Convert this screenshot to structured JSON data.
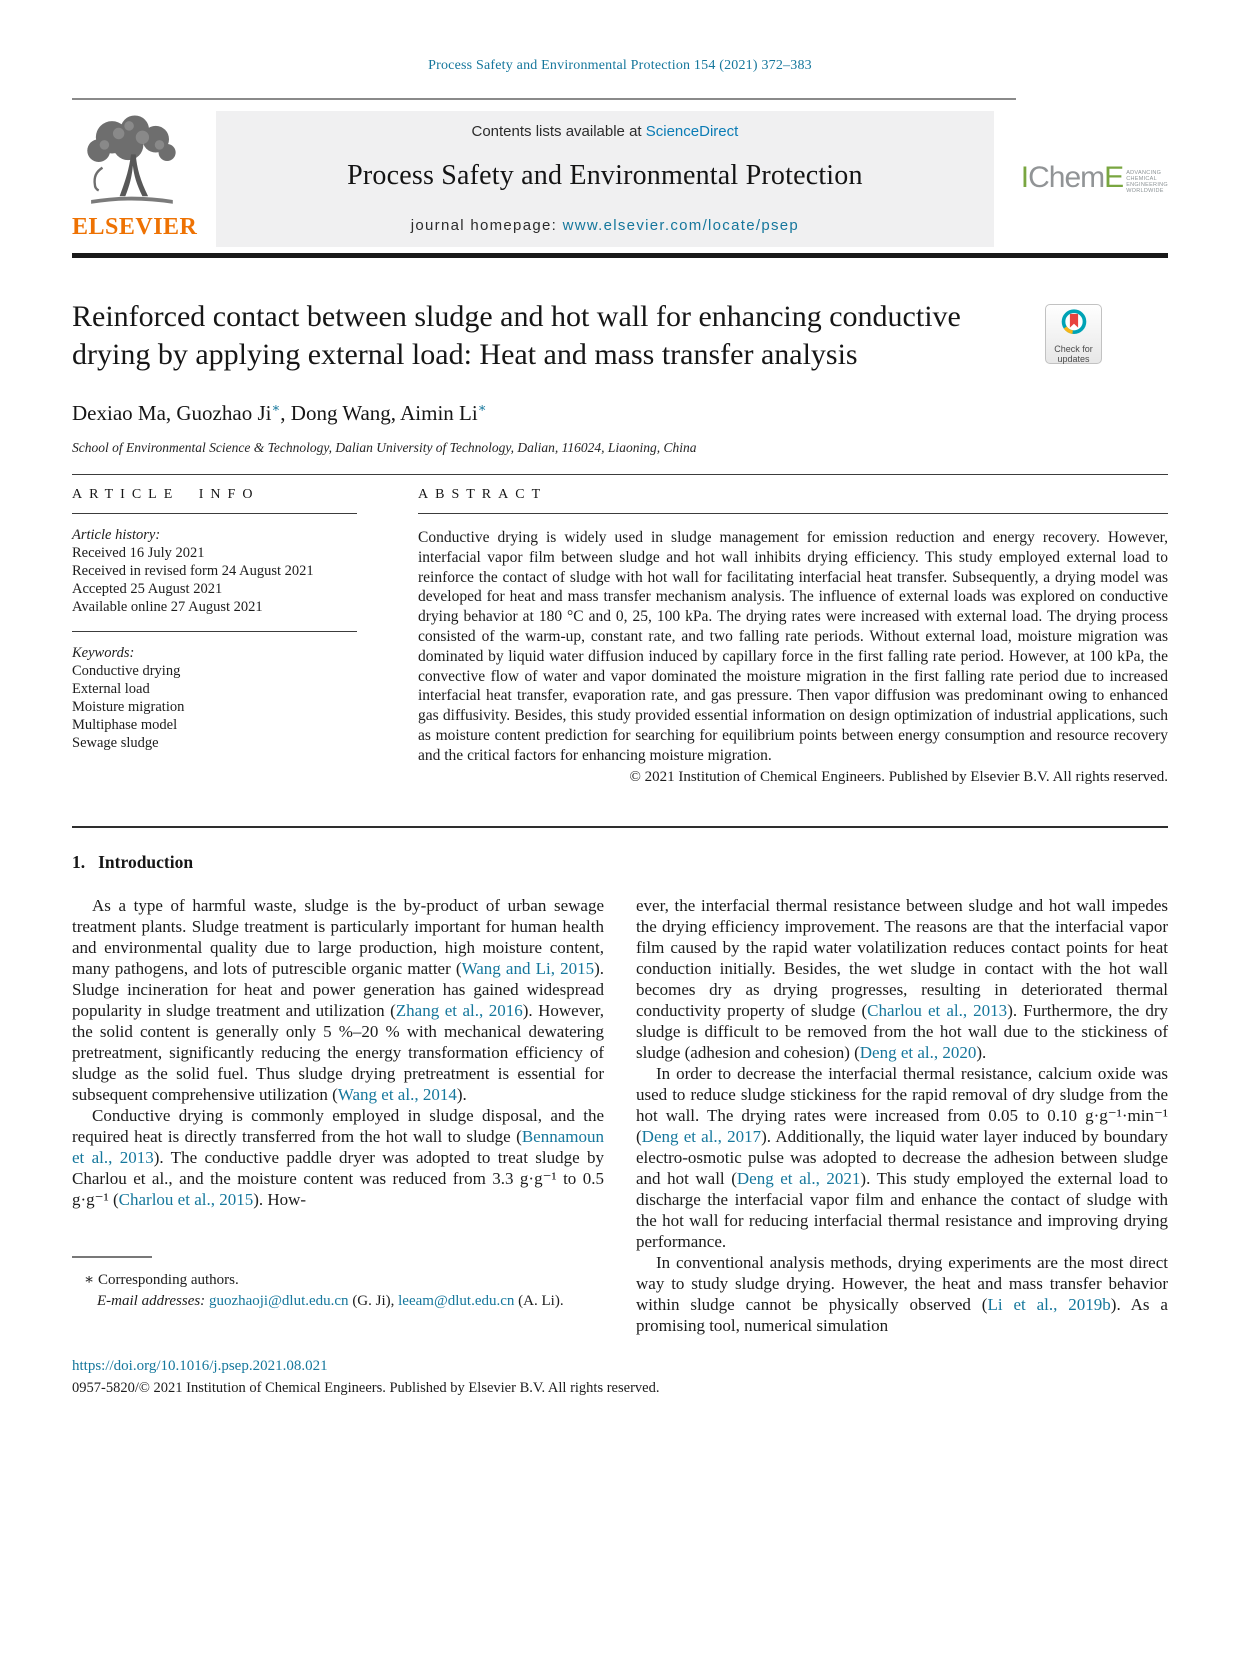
{
  "colors": {
    "link_teal": "#15779c",
    "sciencedirect_blue": "#0b7cb5",
    "elsevier_orange": "#ee7203",
    "icheme_green": "#79a640",
    "crossmark_teal": "#00a3b5",
    "crossmark_yellow": "#f8b617",
    "crossmark_red": "#e8433f"
  },
  "masthead": {
    "journal_ref": "Process Safety and Environmental Protection 154 (2021) 372–383",
    "contents_prefix": "Contents lists available at ",
    "sciencedirect": "ScienceDirect",
    "journal_title": "Process Safety and Environmental Protection",
    "homepage_label": "journal homepage: ",
    "homepage_url": "www.elsevier.com/locate/psep",
    "elsevier_wordmark": "ELSEVIER",
    "icheme": {
      "i": "I",
      "chem": "Chem",
      "e": "E",
      "tagline": [
        "ADVANCING",
        "CHEMICAL",
        "ENGINEERING",
        "WORLDWIDE"
      ]
    }
  },
  "check_badge": {
    "line1": "Check for",
    "line2": "updates"
  },
  "article": {
    "title": "Reinforced contact between sludge and hot wall for enhancing conductive drying by applying external load: Heat and mass transfer analysis",
    "author_line": [
      {
        "t": "Dexiao Ma, Guozhao Ji"
      },
      {
        "sup": "∗"
      },
      {
        "t": ", Dong Wang, Aimin Li"
      },
      {
        "sup": "∗"
      }
    ],
    "affiliation": "School of Environmental Science & Technology, Dalian University of Technology, Dalian, 116024, Liaoning, China"
  },
  "article_info": {
    "heading": "ARTICLE INFO",
    "history_label": "Article history:",
    "history": [
      "Received 16 July 2021",
      "Received in revised form 24 August 2021",
      "Accepted 25 August 2021",
      "Available online 27 August 2021"
    ],
    "keywords_label": "Keywords:",
    "keywords": [
      "Conductive drying",
      "External load",
      "Moisture migration",
      "Multiphase model",
      "Sewage sludge"
    ]
  },
  "abstract": {
    "heading": "ABSTRACT",
    "text": "Conductive drying is widely used in sludge management for emission reduction and energy recovery. However, interfacial vapor film between sludge and hot wall inhibits drying efficiency. This study employed external load to reinforce the contact of sludge with hot wall for facilitating interfacial heat transfer. Subsequently, a drying model was developed for heat and mass transfer mechanism analysis. The influence of external loads was explored on conductive drying behavior at 180 °C and 0, 25, 100 kPa. The drying rates were increased with external load. The drying process consisted of the warm-up, constant rate, and two falling rate periods. Without external load, moisture migration was dominated by liquid water diffusion induced by capillary force in the first falling rate period. However, at 100 kPa, the convective flow of water and vapor dominated the moisture migration in the first falling rate period due to increased interfacial heat transfer, evaporation rate, and gas pressure. Then vapor diffusion was predominant owing to enhanced gas diffusivity. Besides, this study provided essential information on design optimization of industrial applications, such as moisture content prediction for searching for equilibrium points between energy consumption and resource recovery and the critical factors for enhancing moisture migration.",
    "copyright": "© 2021 Institution of Chemical Engineers. Published by Elsevier B.V. All rights reserved."
  },
  "intro": {
    "number": "1.",
    "title": "Introduction",
    "left": [
      [
        {
          "t": "As a type of harmful waste, sludge is the by-product of urban sewage treatment plants. Sludge treatment is particularly important for human health and environmental quality due to large production, high moisture content, many pathogens, and lots of putrescible organic matter ("
        },
        {
          "l": "Wang and Li, 2015"
        },
        {
          "t": "). Sludge incineration for heat and power generation has gained widespread popularity in sludge treatment and utilization ("
        },
        {
          "l": "Zhang et al., 2016"
        },
        {
          "t": "). However, the solid content is generally only 5 %–20 % with mechanical dewatering pretreatment, significantly reducing the energy transformation efficiency of sludge as the solid fuel. Thus sludge drying pretreatment is essential for subsequent comprehensive utilization ("
        },
        {
          "l": "Wang et al., 2014"
        },
        {
          "t": ")."
        }
      ],
      [
        {
          "t": "Conductive drying is commonly employed in sludge disposal, and the required heat is directly transferred from the hot wall to sludge ("
        },
        {
          "l": "Bennamoun et al., 2013"
        },
        {
          "t": "). The conductive paddle dryer was adopted to treat sludge by Charlou et al., and the moisture content was reduced from 3.3 g·g⁻¹ to 0.5 g·g⁻¹ ("
        },
        {
          "l": "Charlou et al., 2015"
        },
        {
          "t": "). How-"
        }
      ]
    ],
    "right": [
      [
        {
          "t": "ever, the interfacial thermal resistance between sludge and hot wall impedes the drying efficiency improvement. The reasons are that the interfacial vapor film caused by the rapid water volatilization reduces contact points for heat conduction initially. Besides, the wet sludge in contact with the hot wall becomes dry as drying progresses, resulting in deteriorated thermal conductivity property of sludge ("
        },
        {
          "l": "Charlou et al., 2013"
        },
        {
          "t": "). Furthermore, the dry sludge is difficult to be removed from the hot wall due to the stickiness of sludge (adhesion and cohesion) ("
        },
        {
          "l": "Deng et al., 2020"
        },
        {
          "t": ")."
        }
      ],
      [
        {
          "t": "In order to decrease the interfacial thermal resistance, calcium oxide was used to reduce sludge stickiness for the rapid removal of dry sludge from the hot wall. The drying rates were increased from 0.05 to 0.10 g·g⁻¹·min⁻¹ ("
        },
        {
          "l": "Deng et al., 2017"
        },
        {
          "t": "). Additionally, the liquid water layer induced by boundary electro-osmotic pulse was adopted to decrease the adhesion between sludge and hot wall ("
        },
        {
          "l": "Deng et al., 2021"
        },
        {
          "t": "). This study employed the external load to discharge the interfacial vapor film and enhance the contact of sludge with the hot wall for reducing interfacial thermal resistance and improving drying performance."
        }
      ],
      [
        {
          "t": "In conventional analysis methods, drying experiments are the most direct way to study sludge drying. However, the heat and mass transfer behavior within sludge cannot be physically observed ("
        },
        {
          "l": "Li et al., 2019b"
        },
        {
          "t": "). As a promising tool, numerical simulation"
        }
      ]
    ]
  },
  "footnote": {
    "note": [
      {
        "t": "∗  Corresponding authors."
      }
    ],
    "emails": [
      {
        "i": "E-mail addresses: "
      },
      {
        "l": "guozhaoji@dlut.edu.cn"
      },
      {
        "t": " (G. Ji), "
      },
      {
        "l": "leeam@dlut.edu.cn"
      },
      {
        "t": " (A. Li)."
      }
    ]
  },
  "bottom": {
    "doi": "https://doi.org/10.1016/j.psep.2021.08.021",
    "issn_line": "0957-5820/© 2021 Institution of Chemical Engineers. Published by Elsevier B.V. All rights reserved."
  }
}
